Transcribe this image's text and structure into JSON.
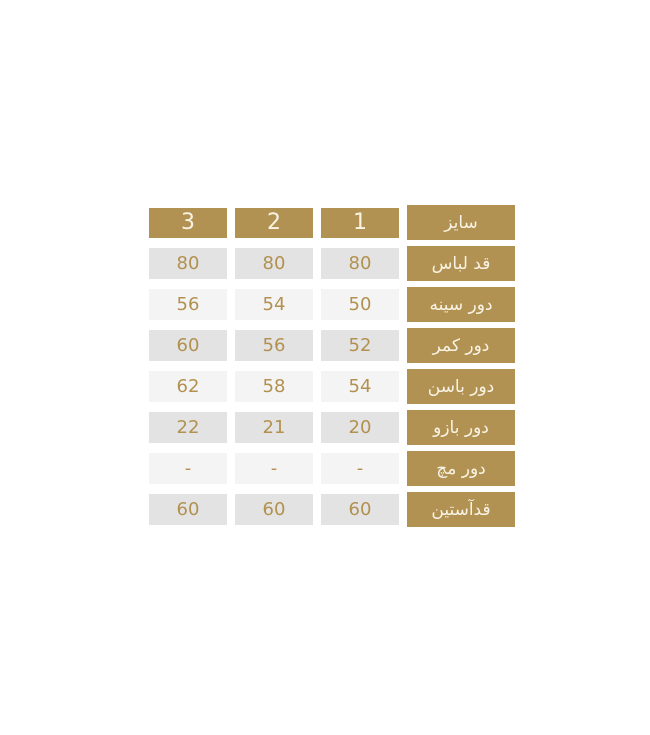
{
  "colors": {
    "accent_gold": "#b19252",
    "label_text": "#f9f3e4",
    "value_text": "#b2914f",
    "row_shade_dark": "#e3e3e4",
    "row_shade_light": "#f4f4f5",
    "page_background": "#ffffff"
  },
  "table": {
    "header": {
      "label": "سایز",
      "sizes": [
        "1",
        "2",
        "3"
      ]
    },
    "rows": [
      {
        "label": "قد لباس",
        "values": [
          "80",
          "80",
          "80"
        ]
      },
      {
        "label": "دور سینه",
        "values": [
          "50",
          "54",
          "56"
        ]
      },
      {
        "label": "دور کمر",
        "values": [
          "52",
          "56",
          "60"
        ]
      },
      {
        "label": "دور باسن",
        "values": [
          "54",
          "58",
          "62"
        ]
      },
      {
        "label": "دور بازو",
        "values": [
          "20",
          "21",
          "22"
        ]
      },
      {
        "label": "دور مچ",
        "values": [
          "-",
          "-",
          "-"
        ]
      },
      {
        "label": "قدآستین",
        "values": [
          "60",
          "60",
          "60"
        ]
      }
    ]
  }
}
